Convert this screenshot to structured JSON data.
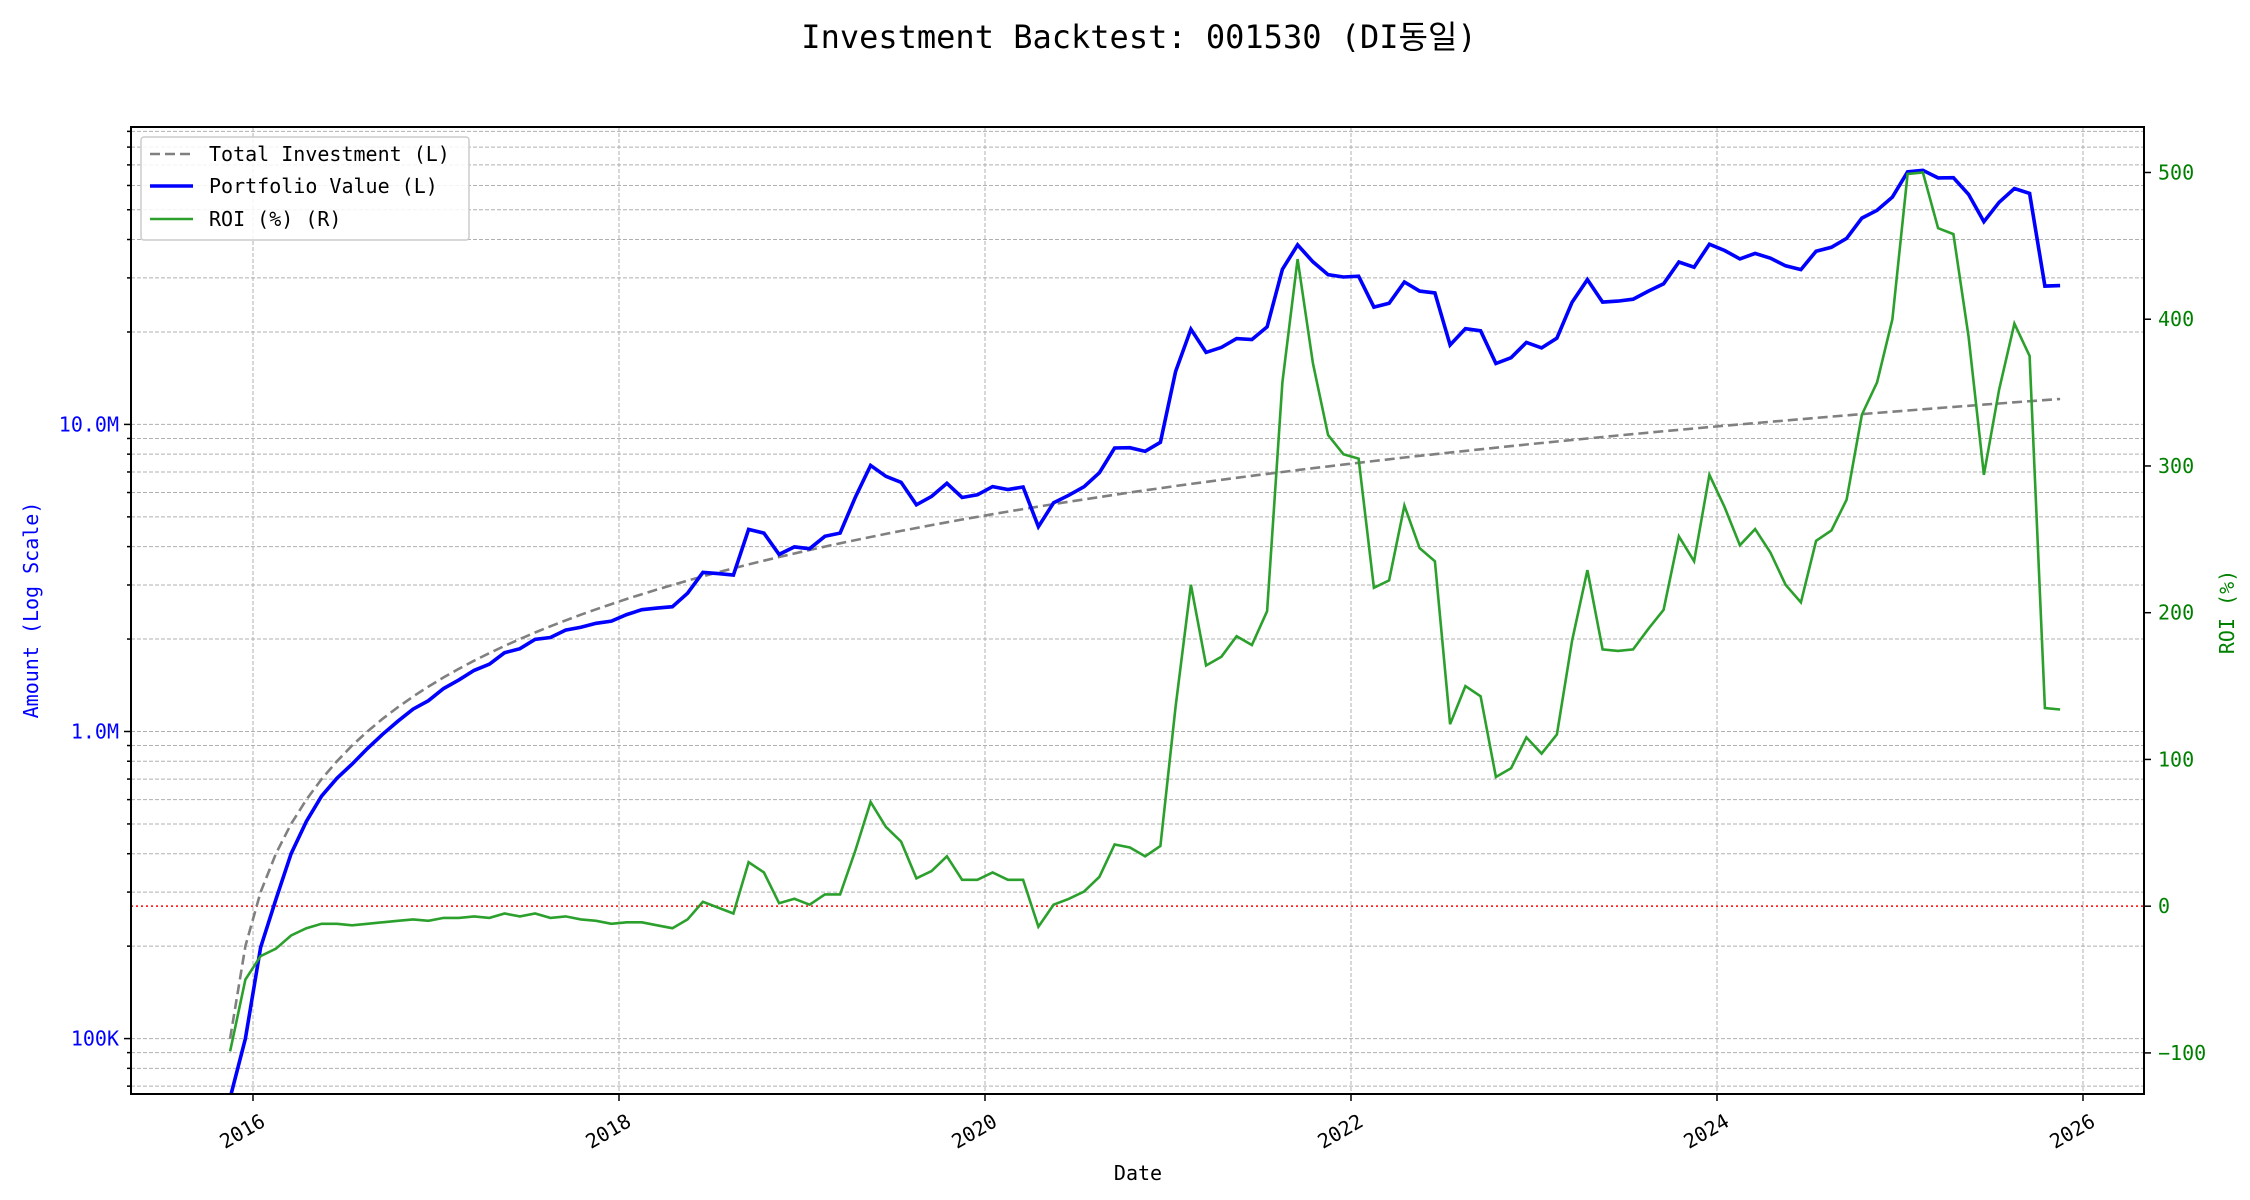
{
  "chart_data": {
    "type": "line",
    "title": "Investment Backtest: 001530 (DI동일)",
    "xlabel": "Date",
    "ylabel_left": "Amount (Log Scale)",
    "ylabel_right": "ROI (%)",
    "left_scale": "log",
    "xlim": [
      "2015-05",
      "2026-05"
    ],
    "ylim_left": [
      66000,
      93000000
    ],
    "ylim_right": [
      -128,
      531
    ],
    "grid": true,
    "legend_placement": "upper-left",
    "x_ticks": [
      "2016",
      "2018",
      "2020",
      "2022",
      "2024",
      "2026"
    ],
    "y_left_ticks": [
      {
        "value": 100000,
        "label": "100K"
      },
      {
        "value": 1000000,
        "label": "1.0M"
      },
      {
        "value": 10000000,
        "label": "10.0M"
      }
    ],
    "y_right_ticks": [
      {
        "value": -100,
        "label": "−100"
      },
      {
        "value": 0,
        "label": "0"
      },
      {
        "value": 100,
        "label": "100"
      },
      {
        "value": 200,
        "label": "200"
      },
      {
        "value": 300,
        "label": "300"
      },
      {
        "value": 400,
        "label": "400"
      },
      {
        "value": 500,
        "label": "500"
      }
    ],
    "reference_line": {
      "axis": "right",
      "value": 0,
      "color": "#ff0000",
      "style": "dotted"
    },
    "colors": {
      "investment": "#808080",
      "portfolio": "#0000ff",
      "roi": "#2ca02c",
      "left_axis": "#0000ff",
      "right_axis": "#008000"
    },
    "start_month": "2015-11",
    "series": [
      {
        "name": "Total Investment (L)",
        "axis": "left",
        "style": "dashed",
        "values": [
          100000,
          200000,
          300000,
          400000,
          500000,
          600000,
          700000,
          800000,
          900000,
          1000000,
          1100000,
          1200000,
          1300000,
          1400000,
          1500000,
          1600000,
          1700000,
          1800000,
          1900000,
          2000000,
          2100000,
          2200000,
          2300000,
          2400000,
          2500000,
          2600000,
          2700000,
          2800000,
          2900000,
          3000000,
          3100000,
          3200000,
          3300000,
          3400000,
          3500000,
          3600000,
          3700000,
          3800000,
          3900000,
          4000000,
          4100000,
          4200000,
          4300000,
          4400000,
          4500000,
          4600000,
          4700000,
          4800000,
          4900000,
          5000000,
          5100000,
          5200000,
          5300000,
          5400000,
          5500000,
          5600000,
          5700000,
          5800000,
          5900000,
          6000000,
          6100000,
          6200000,
          6300000,
          6400000,
          6500000,
          6600000,
          6700000,
          6800000,
          6900000,
          7000000,
          7100000,
          7200000,
          7300000,
          7400000,
          7500000,
          7600000,
          7700000,
          7800000,
          7900000,
          8000000,
          8100000,
          8200000,
          8300000,
          8400000,
          8500000,
          8600000,
          8700000,
          8800000,
          8900000,
          9000000,
          9100000,
          9200000,
          9300000,
          9400000,
          9500000,
          9600000,
          9700000,
          9800000,
          9900000,
          10000000,
          10100000,
          10200000,
          10300000,
          10400000,
          10500000,
          10600000,
          10700000,
          10800000,
          10900000,
          11000000,
          11100000,
          11200000,
          11300000,
          11400000,
          11500000,
          11600000,
          11700000,
          11800000,
          11900000,
          12000000,
          12100000
        ]
      },
      {
        "name": "Portfolio Value (L)",
        "axis": "left",
        "style": "solid",
        "values": [
          1000,
          100000,
          198000,
          284000,
          400000,
          510000,
          616000,
          704000,
          783000,
          880000,
          979000,
          1080000,
          1183000,
          1260000,
          1380000,
          1472000,
          1581000,
          1656000,
          1805000,
          1860000,
          1995000,
          2024000,
          2139000,
          2184000,
          2250000,
          2288000,
          2403000,
          2492000,
          2523000,
          2550000,
          2821000,
          3296000,
          3267000,
          3230000,
          4550000,
          4428000,
          3774000,
          3990000,
          3939000,
          4320000,
          4428000,
          5796000,
          7353000,
          6776000,
          6480000,
          5474000,
          5828000,
          6432000,
          5782000,
          5900000,
          6273000,
          6136000,
          6254000,
          4644000,
          5555000,
          5880000,
          6270000,
          6960000,
          8378000,
          8400000,
          8174000,
          8742000,
          14868000,
          20416000,
          17160000,
          17820000,
          19028000,
          18904000,
          20769000,
          31990000,
          38411000,
          33840000,
          30733000,
          30192000,
          30375000,
          24092000,
          24794000,
          29094000,
          27176000,
          26800000,
          18144000,
          20500000,
          20169000,
          15792000,
          16490000,
          18490000,
          17748000,
          19096000,
          25009000,
          29610000,
          25025000,
          25208000,
          25575000,
          27166000,
          28690000,
          33792000,
          32495000,
          38612000,
          36828000,
          34600000,
          36057000,
          34782000,
          32857000,
          31928000,
          36645000,
          37736000,
          40339000,
          46980000,
          49813000,
          55000000,
          66489000,
          67200000,
          63506000,
          63612000,
          56120000,
          45704000,
          52884000,
          58646000,
          56525000,
          28200000,
          28314000
        ]
      },
      {
        "name": "ROI (%) (R)",
        "axis": "right",
        "style": "solid",
        "values": [
          -99,
          -50,
          -34,
          -29,
          -20,
          -15,
          -12,
          -12,
          -13,
          -12,
          -11,
          -10,
          -9,
          -10,
          -8,
          -8,
          -7,
          -8,
          -5,
          -7,
          -5,
          -8,
          -7,
          -9,
          -10,
          -12,
          -11,
          -11,
          -13,
          -15,
          -9,
          3,
          -1,
          -5,
          30,
          23,
          2,
          5,
          1,
          8,
          8,
          38,
          71,
          54,
          44,
          19,
          24,
          34,
          18,
          18,
          23,
          18,
          18,
          -14,
          1,
          5,
          10,
          20,
          42,
          40,
          34,
          41,
          136,
          219,
          164,
          170,
          184,
          178,
          201,
          357,
          441,
          370,
          321,
          308,
          305,
          217,
          222,
          273,
          244,
          235,
          124,
          150,
          143,
          88,
          94,
          115,
          104,
          117,
          181,
          229,
          175,
          174,
          175,
          189,
          202,
          252,
          235,
          294,
          272,
          246,
          257,
          241,
          219,
          207,
          249,
          256,
          277,
          335,
          357,
          400,
          499,
          500,
          462,
          458,
          388,
          294,
          352,
          397,
          375,
          135,
          134
        ]
      }
    ]
  }
}
